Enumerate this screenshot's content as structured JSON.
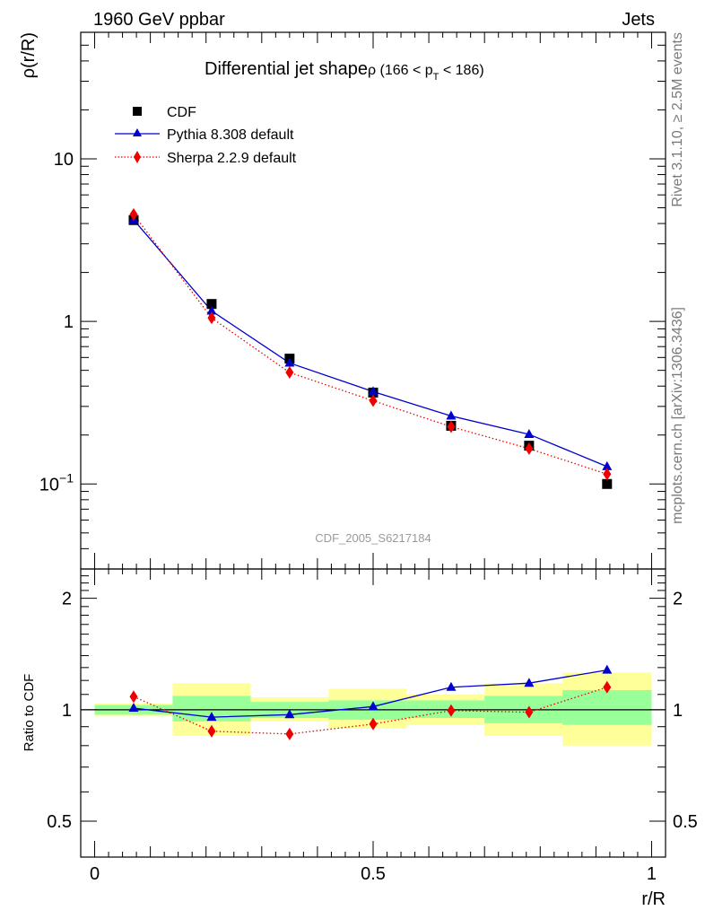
{
  "header": {
    "left": "1960 GeV ppbar",
    "right": "Jets"
  },
  "side_labels": {
    "rivet": "Rivet 3.1.10, ≥ 2.5M events",
    "mcplots": "mcplots.cern.ch [arXiv:1306.3436]"
  },
  "watermark": "CDF_2005_S6217184",
  "colors": {
    "cdf": "#000000",
    "pythia": "#0000cc",
    "sherpa": "#ee0000",
    "band_inner": "#99ff99",
    "band_outer": "#ffff99"
  },
  "chart_data": [
    {
      "type": "scatter",
      "title": "Differential jet shape",
      "title_math": "ρ (166 < p",
      "title_sub": "T",
      "title_tail": " < 186)",
      "ylabel": "ρ(r/R)",
      "yscale": "log",
      "ylim": [
        0.03,
        60
      ],
      "yticks": [
        {
          "v": 0.1,
          "base": "10",
          "exp": "−1"
        },
        {
          "v": 1,
          "label": "1"
        },
        {
          "v": 10,
          "label": "10"
        }
      ],
      "xlim": [
        -0.025,
        1.025
      ],
      "legend_position": "top-left",
      "x": [
        0.07,
        0.21,
        0.35,
        0.5,
        0.64,
        0.78,
        0.92
      ],
      "bin_edges": [
        0.0,
        0.14,
        0.28,
        0.42,
        0.56,
        0.7,
        0.84,
        1.0
      ],
      "series": [
        {
          "name": "CDF",
          "marker": "square",
          "values": [
            4.2,
            1.28,
            0.59,
            0.365,
            0.228,
            0.172,
            0.1
          ]
        },
        {
          "name": "Pythia 8.308 default",
          "marker": "triangle",
          "line": "solid",
          "values": [
            4.22,
            1.16,
            0.555,
            0.37,
            0.262,
            0.202,
            0.128
          ]
        },
        {
          "name": "Sherpa 2.2.9 default",
          "marker": "diamond",
          "line": "dotted",
          "values": [
            4.55,
            1.05,
            0.485,
            0.325,
            0.225,
            0.165,
            0.115
          ]
        }
      ]
    },
    {
      "type": "scatter",
      "ylabel": "Ratio to CDF",
      "xlabel": "r/R",
      "yscale": "log",
      "ylim": [
        0.4,
        2.4
      ],
      "yticks": [
        {
          "v": 0.5,
          "label": "0.5"
        },
        {
          "v": 1,
          "label": "1"
        },
        {
          "v": 2,
          "label": "2"
        }
      ],
      "xlim": [
        -0.025,
        1.025
      ],
      "xticks": [
        {
          "v": 0,
          "label": "0"
        },
        {
          "v": 0.5,
          "label": "0.5"
        },
        {
          "v": 1,
          "label": "1"
        }
      ],
      "x": [
        0.07,
        0.21,
        0.35,
        0.5,
        0.64,
        0.78,
        0.92
      ],
      "bands": {
        "edges": [
          0.0,
          0.14,
          0.28,
          0.42,
          0.56,
          0.7,
          0.84,
          1.0
        ],
        "inner": [
          [
            0.97,
            1.03
          ],
          [
            0.93,
            1.09
          ],
          [
            0.95,
            1.05
          ],
          [
            0.94,
            1.06
          ],
          [
            0.95,
            1.06
          ],
          [
            0.92,
            1.09
          ],
          [
            0.91,
            1.13
          ]
        ],
        "outer": [
          [
            0.96,
            1.04
          ],
          [
            0.85,
            1.18
          ],
          [
            0.93,
            1.08
          ],
          [
            0.89,
            1.14
          ],
          [
            0.91,
            1.1
          ],
          [
            0.85,
            1.18
          ],
          [
            0.8,
            1.26
          ]
        ]
      },
      "series": [
        {
          "name": "Pythia 8.308 default",
          "values": [
            1.01,
            0.955,
            0.97,
            1.02,
            1.15,
            1.18,
            1.28
          ]
        },
        {
          "name": "Sherpa 2.2.9 default",
          "values": [
            1.085,
            0.875,
            0.86,
            0.915,
            0.995,
            0.985,
            1.15
          ]
        }
      ]
    }
  ]
}
